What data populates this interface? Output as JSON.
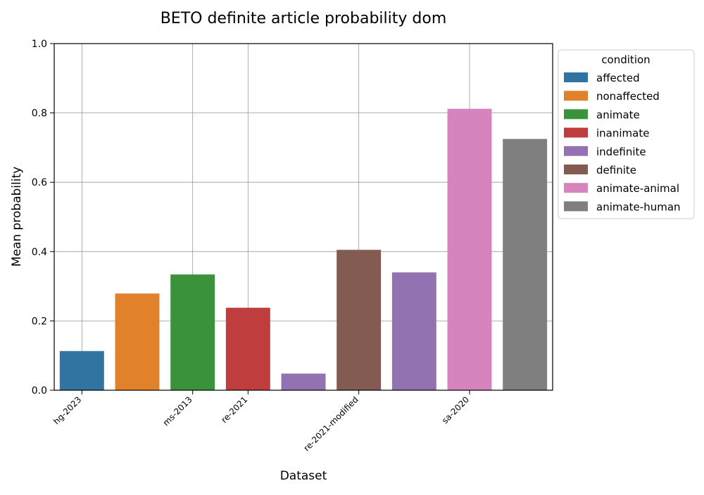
{
  "chart_data": {
    "type": "bar",
    "title": "BETO definite article probability dom",
    "xlabel": "Dataset",
    "ylabel": "Mean probability",
    "ylim": [
      0,
      1
    ],
    "yticks": [
      0.0,
      0.2,
      0.4,
      0.6,
      0.8,
      1.0
    ],
    "ytick_labels": [
      "0.0",
      "0.2",
      "0.4",
      "0.6",
      "0.8",
      "1.0"
    ],
    "grid": true,
    "legend": {
      "title": "condition",
      "placement": "outside-right",
      "entries": [
        {
          "label": "affected",
          "color": "#3274a1"
        },
        {
          "label": "nonaffected",
          "color": "#e1812c"
        },
        {
          "label": "animate",
          "color": "#3a923a"
        },
        {
          "label": "inanimate",
          "color": "#c03d3e"
        },
        {
          "label": "indefinite",
          "color": "#9372b2"
        },
        {
          "label": "definite",
          "color": "#845b53"
        },
        {
          "label": "animate-animal",
          "color": "#d684bd"
        },
        {
          "label": "animate-human",
          "color": "#7f7f7f"
        }
      ]
    },
    "slots": 9,
    "ticks": [
      {
        "label": "hg-2023",
        "pos": 0.5
      },
      {
        "label": "ms-2013",
        "pos": 2.5
      },
      {
        "label": "re-2021",
        "pos": 3.5
      },
      {
        "label": "re-2021-modified",
        "pos": 5.5
      },
      {
        "label": "sa-2020",
        "pos": 7.5
      }
    ],
    "bars": [
      {
        "dataset": "hg-2023",
        "condition": "affected",
        "value": 0.113,
        "color": "#3274a1"
      },
      {
        "dataset": "hg-2023",
        "condition": "nonaffected",
        "value": 0.279,
        "color": "#e1812c"
      },
      {
        "dataset": "ms-2013",
        "condition": "animate",
        "value": 0.334,
        "color": "#3a923a"
      },
      {
        "dataset": "ms-2013",
        "condition": "inanimate",
        "value": 0.238,
        "color": "#c03d3e"
      },
      {
        "dataset": "re-2021",
        "condition": "indefinite",
        "value": 0.048,
        "color": "#9372b2"
      },
      {
        "dataset": "re-2021-modified",
        "condition": "definite",
        "value": 0.405,
        "color": "#845b53"
      },
      {
        "dataset": "re-2021-modified",
        "condition": "indefinite",
        "value": 0.34,
        "color": "#9372b2"
      },
      {
        "dataset": "sa-2020",
        "condition": "animate-animal",
        "value": 0.812,
        "color": "#d684bd"
      },
      {
        "dataset": "sa-2020",
        "condition": "animate-human",
        "value": 0.725,
        "color": "#7f7f7f"
      }
    ]
  }
}
